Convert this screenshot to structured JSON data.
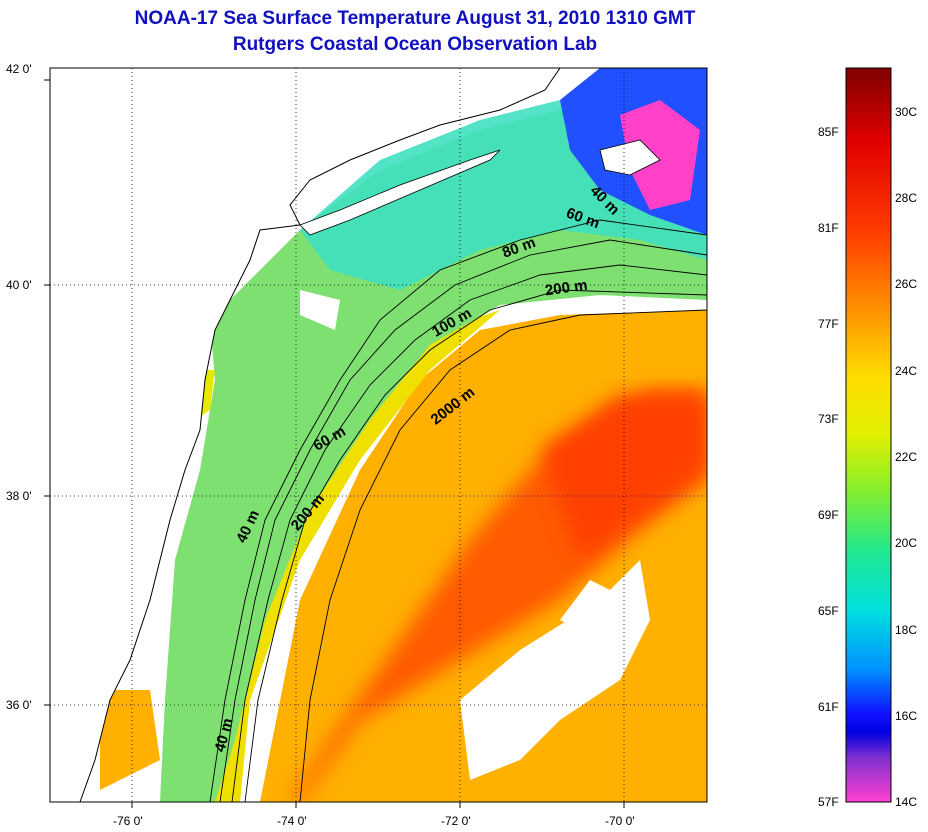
{
  "title": {
    "line1": "NOAA-17 Sea Surface Temperature August 31, 2010 1310 GMT",
    "line2": "Rutgers Coastal Ocean Observation Lab"
  },
  "colors": {
    "title": "#1010c0",
    "land": "#ffffff",
    "coastline": "#000000"
  },
  "map": {
    "lat_ticks": [
      "42 0'",
      "40 0'",
      "38 0'",
      "36 0'"
    ],
    "lon_ticks": [
      "-76 0'",
      "-74 0'",
      "-72 0'",
      "-70 0'"
    ],
    "grid": "dotted",
    "contour_labels": [
      "40 m",
      "60 m",
      "80 m",
      "200 m",
      "100 m",
      "2000 m",
      "60 m",
      "200 m",
      "40 m",
      "40 m"
    ]
  },
  "colorbar": {
    "fahrenheit": [
      "85F",
      "81F",
      "77F",
      "73F",
      "69F",
      "65F",
      "61F",
      "57F"
    ],
    "celsius": [
      "30C",
      "28C",
      "26C",
      "24C",
      "22C",
      "20C",
      "18C",
      "16C",
      "14C"
    ]
  }
}
